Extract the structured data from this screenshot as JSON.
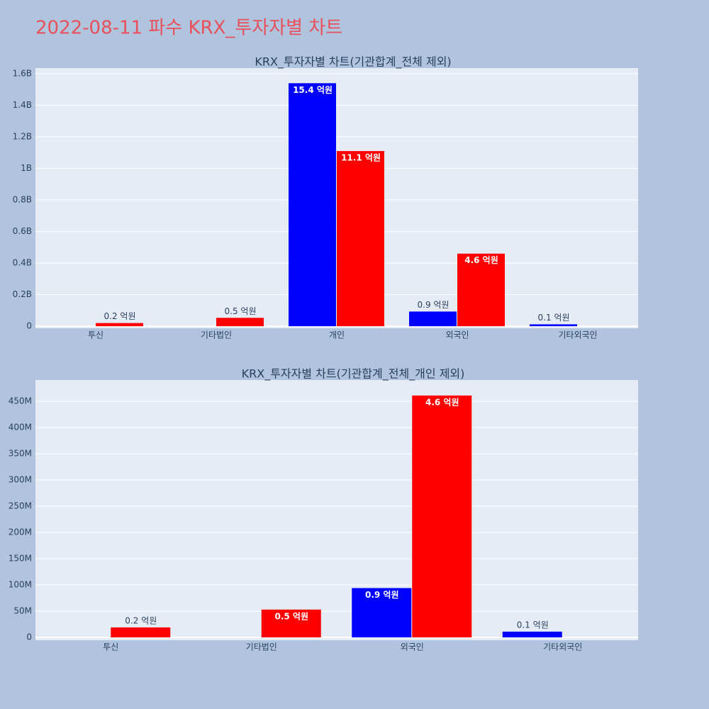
{
  "title": "2022-08-11 파수 KRX_투자자별 차트",
  "chart_data": [
    {
      "type": "bar",
      "title": "KRX_투자자별 차트(기관합계_전체 제외)",
      "categories": [
        "투신",
        "기타법인",
        "개인",
        "외국인",
        "기타외국인"
      ],
      "series": [
        {
          "color": "#0000ff",
          "values": [
            null,
            null,
            1540000000,
            93000000,
            12000000
          ],
          "value_labels": [
            null,
            null,
            "15.4 억원",
            "0.9 억원",
            "0.1 억원"
          ]
        },
        {
          "color": "#ff0000",
          "values": [
            20000000,
            53000000,
            1110000000,
            460000000,
            null
          ],
          "value_labels": [
            "0.2 억원",
            "0.5 억원",
            "11.1 억원",
            "4.6 억원",
            null
          ]
        }
      ],
      "ylim": [
        -13000000,
        1636000000
      ],
      "yticks": [
        0,
        {
          "value": 200000000,
          "label": "0.2B"
        },
        {
          "value": 400000000,
          "label": "0.4B"
        },
        {
          "value": 600000000,
          "label": "0.6B"
        },
        {
          "value": 800000000,
          "label": "0.8B"
        },
        {
          "value": 1000000000,
          "label": "1B"
        },
        {
          "value": 1200000000,
          "label": "1.2B"
        },
        {
          "value": 1400000000,
          "label": "1.4B"
        },
        {
          "value": 1600000000,
          "label": "1.6B"
        }
      ],
      "grid": true
    },
    {
      "type": "bar",
      "title": "KRX_투자자별 차트(기관합계_전체_개인 제외)",
      "categories": [
        "투신",
        "기타법인",
        "외국인",
        "기타외국인"
      ],
      "series": [
        {
          "color": "#0000ff",
          "values": [
            null,
            null,
            94000000,
            11000000
          ],
          "value_labels": [
            null,
            null,
            "0.9 억원",
            "0.1 억원"
          ]
        },
        {
          "color": "#ff0000",
          "values": [
            19000000,
            53000000,
            461000000,
            null
          ],
          "value_labels": [
            "0.2 억원",
            "0.5 억원",
            "4.6 억원",
            null
          ]
        }
      ],
      "ylim": [
        -5400000,
        490500000
      ],
      "yticks": [
        0,
        {
          "value": 50000000,
          "label": "50M"
        },
        {
          "value": 100000000,
          "label": "100M"
        },
        {
          "value": 150000000,
          "label": "150M"
        },
        {
          "value": 200000000,
          "label": "200M"
        },
        {
          "value": 250000000,
          "label": "250M"
        },
        {
          "value": 300000000,
          "label": "300M"
        },
        {
          "value": 350000000,
          "label": "350M"
        },
        {
          "value": 400000000,
          "label": "400M"
        },
        {
          "value": 450000000,
          "label": "450M"
        }
      ],
      "grid": true
    }
  ]
}
